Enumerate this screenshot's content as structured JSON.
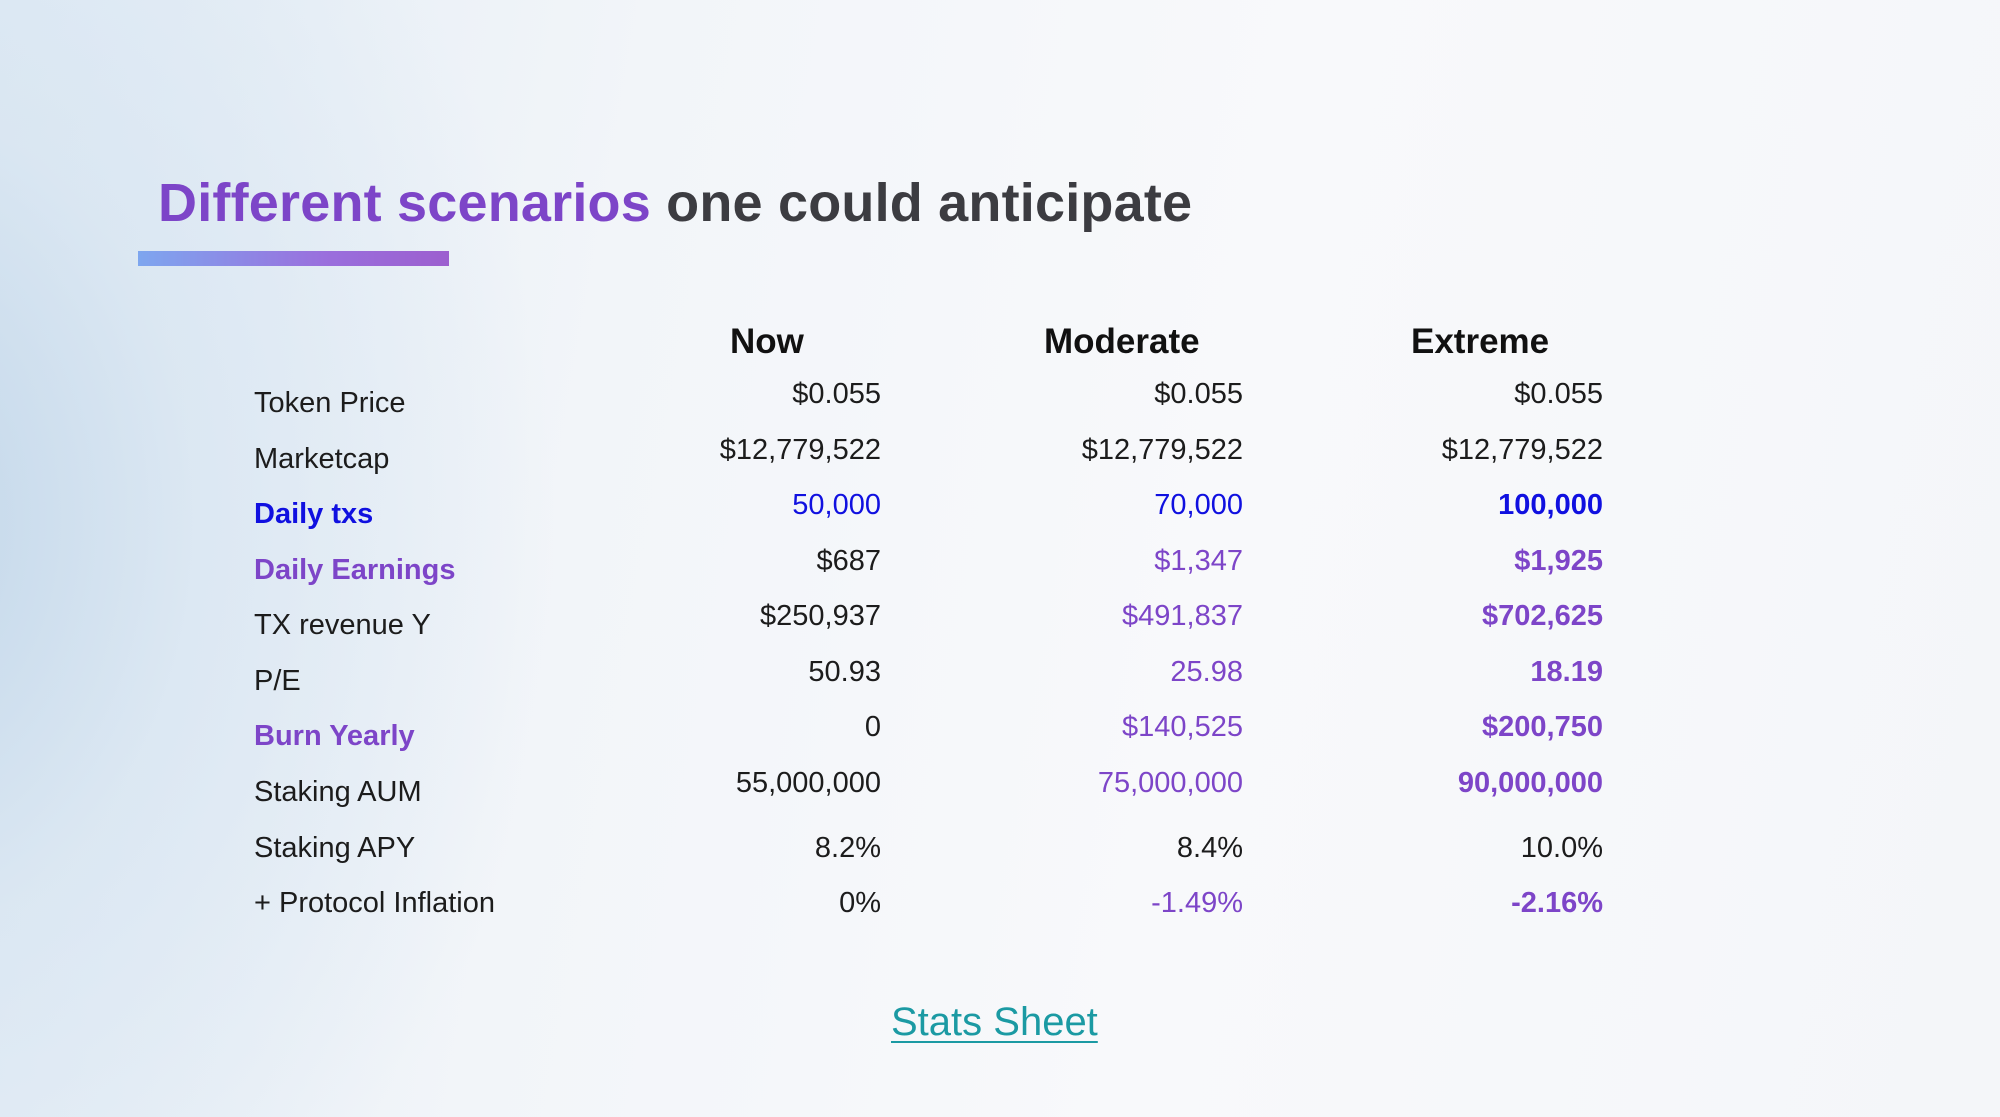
{
  "colors": {
    "title_accent": "#7d45c8",
    "title_dark": "#3c3c41",
    "blue": "#1010e0",
    "purple": "#7d45c8",
    "text": "#1c1c1c",
    "link": "#1b9aa3"
  },
  "slide": {
    "title_accent": "Different scenarios",
    "title_rest": " one could anticipate",
    "link_label": "Stats Sheet"
  },
  "table": {
    "columns": [
      "Now",
      "Moderate",
      "Extreme"
    ],
    "rows": [
      {
        "label": "Token Price",
        "style": "normal",
        "values": [
          "$0.055",
          "$0.055",
          "$0.055"
        ],
        "colors": [
          "text",
          "text",
          "text"
        ],
        "bold": [
          false,
          false,
          false
        ]
      },
      {
        "label": "Marketcap",
        "style": "normal",
        "values": [
          "$12,779,522",
          "$12,779,522",
          "$12,779,522"
        ],
        "colors": [
          "text",
          "text",
          "text"
        ],
        "bold": [
          false,
          false,
          false
        ]
      },
      {
        "label": "Daily txs",
        "style": "blue",
        "values": [
          "50,000",
          "70,000",
          "100,000"
        ],
        "colors": [
          "blue",
          "blue",
          "blue"
        ],
        "bold": [
          false,
          false,
          true
        ]
      },
      {
        "label": "Daily Earnings",
        "style": "purple",
        "values": [
          "$687",
          "$1,347",
          "$1,925"
        ],
        "colors": [
          "text",
          "purple",
          "purple"
        ],
        "bold": [
          false,
          false,
          true
        ]
      },
      {
        "label": "TX revenue Y",
        "style": "normal",
        "values": [
          "$250,937",
          "$491,837",
          "$702,625"
        ],
        "colors": [
          "text",
          "purple",
          "purple"
        ],
        "bold": [
          false,
          false,
          true
        ]
      },
      {
        "label": "P/E",
        "style": "normal",
        "values": [
          "50.93",
          "25.98",
          "18.19"
        ],
        "colors": [
          "text",
          "purple",
          "purple"
        ],
        "bold": [
          false,
          false,
          true
        ]
      },
      {
        "label": "Burn Yearly",
        "style": "purple",
        "values": [
          "0",
          "$140,525",
          "$200,750"
        ],
        "colors": [
          "text",
          "purple",
          "purple"
        ],
        "bold": [
          false,
          false,
          true
        ]
      },
      {
        "label": "Staking AUM",
        "style": "normal",
        "values": [
          "55,000,000",
          "75,000,000",
          "90,000,000"
        ],
        "colors": [
          "text",
          "purple",
          "purple"
        ],
        "bold": [
          false,
          false,
          true
        ]
      },
      {
        "label": "Staking APY",
        "style": "normal",
        "values": [
          "8.2%",
          "8.4%",
          "10.0%"
        ],
        "colors": [
          "text",
          "text",
          "text"
        ],
        "bold": [
          false,
          false,
          false
        ]
      },
      {
        "label": "+ Protocol Inflation",
        "style": "normal",
        "values": [
          "0%",
          "-1.49%",
          "-2.16%"
        ],
        "colors": [
          "text",
          "purple",
          "purple"
        ],
        "bold": [
          false,
          false,
          true
        ]
      }
    ]
  }
}
